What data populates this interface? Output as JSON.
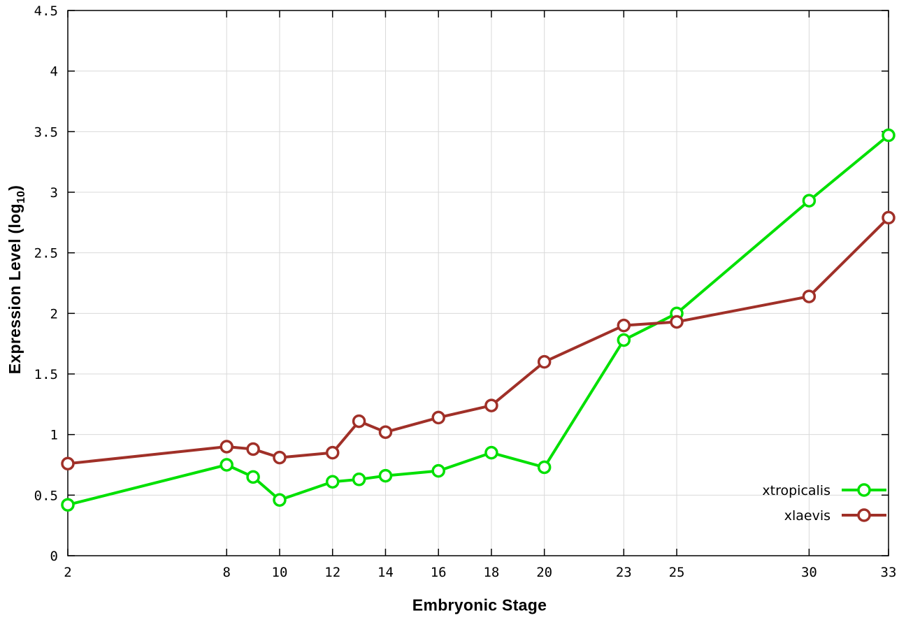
{
  "chart_data": {
    "type": "line",
    "title": "",
    "xlabel": "Embryonic Stage",
    "ylabel": "Expression Level (log10)",
    "ylabel_parts": {
      "prefix": "Expression Level (log",
      "sub": "10",
      "suffix": ")"
    },
    "x": [
      2,
      8,
      9,
      10,
      12,
      13,
      14,
      16,
      18,
      20,
      23,
      25,
      30,
      33
    ],
    "series": [
      {
        "name": "xtropicalis",
        "color": "#00e000",
        "marker": "open-circle",
        "values": [
          0.42,
          0.75,
          0.65,
          0.46,
          0.61,
          0.63,
          0.66,
          0.7,
          0.85,
          0.73,
          1.78,
          2.0,
          2.93,
          3.47
        ]
      },
      {
        "name": "xlaevis",
        "color": "#a03028",
        "marker": "open-circle",
        "values": [
          0.76,
          0.9,
          0.88,
          0.81,
          0.85,
          1.11,
          1.02,
          1.14,
          1.24,
          1.6,
          1.9,
          1.93,
          2.14,
          2.79
        ]
      }
    ],
    "xlim": [
      2,
      33
    ],
    "ylim": [
      0,
      4.5
    ],
    "xticks": [
      2,
      8,
      10,
      12,
      14,
      16,
      18,
      20,
      23,
      25,
      30,
      33
    ],
    "yticks": [
      0,
      0.5,
      1,
      1.5,
      2,
      2.5,
      3,
      3.5,
      4,
      4.5
    ],
    "ytick_labels": [
      "0",
      "0.5",
      "1",
      "1.5",
      "2",
      "2.5",
      "3",
      "3.5",
      "4",
      "4.5"
    ],
    "grid": true,
    "legend_position": "inside-bottom-right",
    "colors": {
      "grid": "#d9d9d9",
      "axis": "#000000",
      "text": "#000000",
      "background": "#ffffff"
    }
  }
}
